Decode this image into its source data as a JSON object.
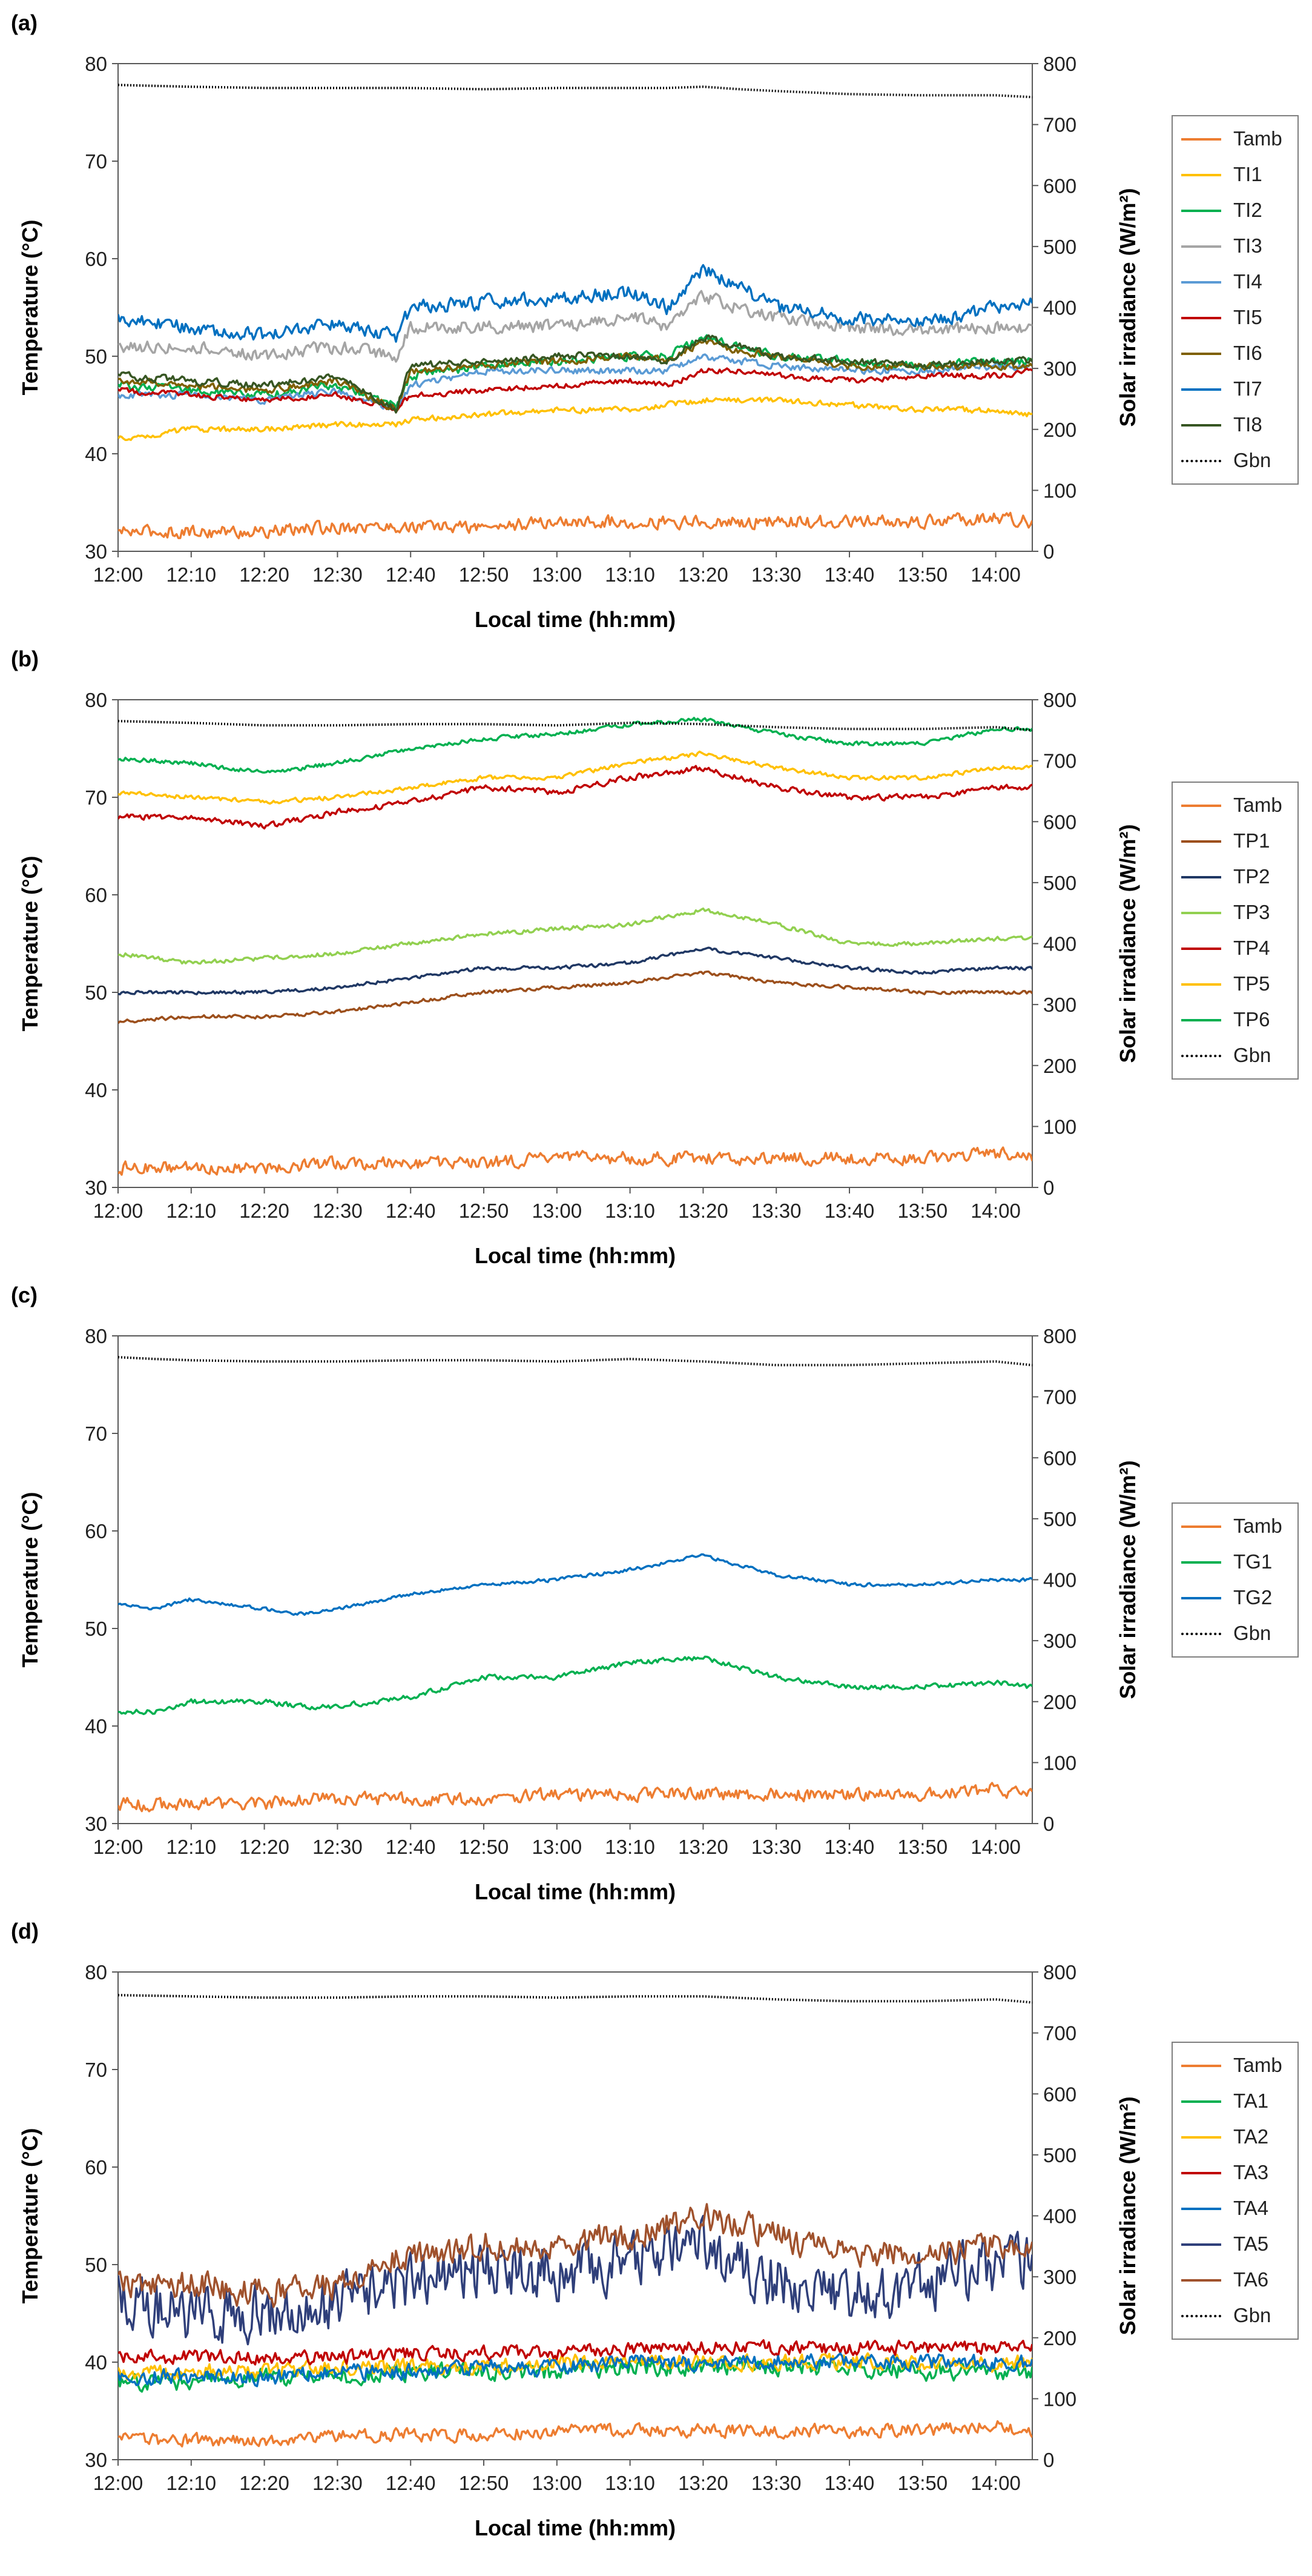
{
  "chart_data": [
    {
      "type": "line",
      "panel_label": "(a)",
      "xlabel": "Local time (hh:mm)",
      "ylabel": "Temperature (°C)",
      "y2label": "Solar irradiance (W/m²)",
      "x_ticks": [
        "12:00",
        "12:10",
        "12:20",
        "12:30",
        "12:40",
        "12:50",
        "13:00",
        "13:10",
        "13:20",
        "13:30",
        "13:40",
        "13:50",
        "14:00"
      ],
      "x_range_minutes": [
        0,
        125
      ],
      "ylim": [
        30,
        80
      ],
      "y_ticks": [
        30,
        40,
        50,
        60,
        70,
        80
      ],
      "y2lim": [
        0,
        800
      ],
      "y2_ticks": [
        0,
        100,
        200,
        300,
        400,
        500,
        600,
        700,
        800
      ],
      "legend_position": "right",
      "grid": false,
      "x_minutes": [
        0,
        10,
        20,
        30,
        38,
        40,
        50,
        60,
        70,
        75,
        80,
        85,
        90,
        100,
        110,
        120,
        125
      ],
      "series": [
        {
          "name": "Tamb",
          "color": "#ed7d31",
          "noise": 0.9,
          "axis": "left",
          "values": [
            32,
            32,
            32,
            32.5,
            32.5,
            32.5,
            32.5,
            33,
            33,
            33,
            33,
            33,
            33,
            33,
            33,
            33.5,
            33
          ]
        },
        {
          "name": "TI1",
          "color": "#ffc000",
          "noise": 0.4,
          "axis": "left",
          "values": [
            41.5,
            42.5,
            42.5,
            43,
            43,
            43.5,
            44,
            44.5,
            44.5,
            45,
            45.5,
            45.5,
            45.5,
            45,
            44.5,
            44.5,
            44
          ]
        },
        {
          "name": "TI2",
          "color": "#00b050",
          "noise": 0.6,
          "axis": "left",
          "values": [
            47,
            46.5,
            46,
            47,
            45,
            48,
            49,
            49.5,
            50,
            50,
            52,
            51,
            50,
            49.5,
            49,
            49.5,
            49.5
          ]
        },
        {
          "name": "TI3",
          "color": "#a5a5a5",
          "noise": 0.9,
          "axis": "left",
          "values": [
            51,
            51,
            50,
            51,
            50,
            53,
            53,
            53,
            54,
            53,
            56,
            55,
            54,
            53,
            52.5,
            53,
            53
          ]
        },
        {
          "name": "TI4",
          "color": "#5b9bd5",
          "noise": 0.5,
          "axis": "left",
          "values": [
            46,
            46,
            45.5,
            46.5,
            44.5,
            47,
            48.5,
            48.5,
            48.5,
            48.5,
            50,
            49.5,
            49,
            48.5,
            48.5,
            49,
            49
          ]
        },
        {
          "name": "TI5",
          "color": "#c00000",
          "noise": 0.4,
          "axis": "left",
          "values": [
            46.5,
            46,
            45.5,
            46,
            44.5,
            46,
            46.5,
            47,
            47.5,
            47,
            48.5,
            48.5,
            48,
            47.5,
            48,
            48,
            48.5
          ]
        },
        {
          "name": "TI6",
          "color": "#7f6000",
          "noise": 0.5,
          "axis": "left",
          "values": [
            47.5,
            47,
            46.5,
            47.5,
            44.5,
            48.5,
            49,
            49.5,
            50,
            49.5,
            51.5,
            50.5,
            50,
            49,
            49,
            49,
            49
          ]
        },
        {
          "name": "TI7",
          "color": "#0070c0",
          "noise": 1.0,
          "axis": "left",
          "values": [
            54,
            53,
            52,
            53.5,
            52,
            55,
            55.5,
            56,
            56.5,
            55,
            59,
            57,
            55,
            54,
            53.5,
            55,
            55.5
          ]
        },
        {
          "name": "TI8",
          "color": "#375623",
          "noise": 0.5,
          "axis": "left",
          "values": [
            48,
            47.5,
            47,
            48,
            44.5,
            49,
            49.5,
            50,
            50,
            49.5,
            52,
            51,
            50,
            49.5,
            49,
            49.5,
            49.5
          ]
        },
        {
          "name": "Gbn",
          "color": "#000000",
          "dotted": true,
          "axis": "right",
          "values": [
            765,
            762,
            760,
            760,
            760,
            760,
            758,
            760,
            760,
            760,
            762,
            758,
            755,
            750,
            748,
            748,
            745
          ]
        }
      ]
    },
    {
      "type": "line",
      "panel_label": "(b)",
      "xlabel": "Local time (hh:mm)",
      "ylabel": "Temperature (°C)",
      "y2label": "Solar irradiance (W/m²)",
      "x_ticks": [
        "12:00",
        "12:10",
        "12:20",
        "12:30",
        "12:40",
        "12:50",
        "13:00",
        "13:10",
        "13:20",
        "13:30",
        "13:40",
        "13:50",
        "14:00"
      ],
      "x_range_minutes": [
        0,
        125
      ],
      "ylim": [
        30,
        80
      ],
      "y_ticks": [
        30,
        40,
        50,
        60,
        70,
        80
      ],
      "y2lim": [
        0,
        800
      ],
      "y2_ticks": [
        0,
        100,
        200,
        300,
        400,
        500,
        600,
        700,
        800
      ],
      "legend_position": "right",
      "grid": false,
      "x_minutes": [
        0,
        10,
        20,
        30,
        40,
        50,
        60,
        70,
        80,
        90,
        100,
        110,
        120,
        125
      ],
      "series": [
        {
          "name": "Tamb",
          "color": "#ed7d31",
          "noise": 0.9,
          "axis": "left",
          "values": [
            32,
            32,
            32,
            32.5,
            32.5,
            32.5,
            33,
            33,
            33,
            33,
            33,
            33,
            33.5,
            33
          ]
        },
        {
          "name": "TP1",
          "color": "#9c4f1c",
          "noise": 0.25,
          "axis": "left",
          "values": [
            47,
            47.5,
            47.5,
            48,
            49,
            50,
            50.5,
            51,
            52,
            51,
            50.5,
            50,
            50,
            50
          ]
        },
        {
          "name": "TP2",
          "color": "#203864",
          "noise": 0.25,
          "axis": "left",
          "values": [
            50,
            50,
            50,
            50.5,
            51.5,
            52.5,
            52.5,
            53,
            54.5,
            53.5,
            52.5,
            52,
            52.5,
            52.5
          ]
        },
        {
          "name": "TP3",
          "color": "#92d050",
          "noise": 0.3,
          "axis": "left",
          "values": [
            54,
            53,
            53.5,
            54,
            55,
            56,
            56.5,
            57,
            58.5,
            57,
            55,
            55,
            55.5,
            55.5
          ]
        },
        {
          "name": "TP4",
          "color": "#c00000",
          "noise": 0.4,
          "axis": "left",
          "values": [
            68,
            68,
            67,
            68.5,
            69.5,
            71,
            70.5,
            72,
            73,
            71,
            70,
            70,
            71,
            71
          ]
        },
        {
          "name": "TP5",
          "color": "#ffc000",
          "noise": 0.3,
          "axis": "left",
          "values": [
            70.5,
            70,
            69.5,
            70,
            71,
            72,
            72,
            73.5,
            74.5,
            73,
            72,
            72,
            73,
            73
          ]
        },
        {
          "name": "TP6",
          "color": "#00b050",
          "noise": 0.3,
          "axis": "left",
          "values": [
            74,
            73.5,
            72.5,
            73.5,
            75,
            76,
            76.5,
            77.5,
            78,
            76.5,
            75.5,
            75.5,
            77,
            77
          ]
        },
        {
          "name": "Gbn",
          "color": "#000000",
          "dotted": true,
          "axis": "right",
          "values": [
            765,
            762,
            758,
            758,
            760,
            760,
            758,
            762,
            760,
            755,
            752,
            752,
            755,
            750
          ]
        }
      ]
    },
    {
      "type": "line",
      "panel_label": "(c)",
      "xlabel": "Local time (hh:mm)",
      "ylabel": "Temperature (°C)",
      "y2label": "Solar irradiance (W/m²)",
      "x_ticks": [
        "12:00",
        "12:10",
        "12:20",
        "12:30",
        "12:40",
        "12:50",
        "13:00",
        "13:10",
        "13:20",
        "13:30",
        "13:40",
        "13:50",
        "14:00"
      ],
      "x_range_minutes": [
        0,
        125
      ],
      "ylim": [
        30,
        80
      ],
      "y_ticks": [
        30,
        40,
        50,
        60,
        70,
        80
      ],
      "y2lim": [
        0,
        800
      ],
      "y2_ticks": [
        0,
        100,
        200,
        300,
        400,
        500,
        600,
        700,
        800
      ],
      "legend_position": "right",
      "grid": false,
      "x_minutes": [
        0,
        5,
        10,
        20,
        25,
        30,
        40,
        50,
        60,
        70,
        80,
        90,
        100,
        110,
        120,
        125
      ],
      "series": [
        {
          "name": "Tamb",
          "color": "#ed7d31",
          "noise": 0.9,
          "axis": "left",
          "values": [
            32,
            32,
            32,
            32,
            32.5,
            32.5,
            32.5,
            32.5,
            33,
            33,
            33,
            33,
            33,
            33,
            33.5,
            33
          ]
        },
        {
          "name": "TG1",
          "color": "#00b050",
          "noise": 0.35,
          "axis": "left",
          "values": [
            41.5,
            41.5,
            42.5,
            42.5,
            42,
            42,
            43,
            45,
            45,
            46.5,
            47,
            45,
            44,
            44,
            44.5,
            44
          ]
        },
        {
          "name": "TG2",
          "color": "#0070c0",
          "noise": 0.25,
          "axis": "left",
          "values": [
            52.5,
            52,
            53,
            52,
            51.5,
            52,
            53.5,
            54.5,
            55,
            56,
            57.5,
            55.5,
            54.5,
            54.5,
            55,
            55
          ]
        },
        {
          "name": "Gbn",
          "color": "#000000",
          "dotted": true,
          "axis": "right",
          "values": [
            765,
            762,
            760,
            758,
            758,
            758,
            760,
            760,
            758,
            762,
            758,
            752,
            752,
            755,
            758,
            752
          ]
        }
      ]
    },
    {
      "type": "line",
      "panel_label": "(d)",
      "xlabel": "Local time (hh:mm)",
      "ylabel": "Temperature (°C)",
      "y2label": "Solar irradiance (W/m²)",
      "x_ticks": [
        "12:00",
        "12:10",
        "12:20",
        "12:30",
        "12:40",
        "12:50",
        "13:00",
        "13:10",
        "13:20",
        "13:30",
        "13:40",
        "13:50",
        "14:00"
      ],
      "x_range_minutes": [
        0,
        125
      ],
      "ylim": [
        30,
        80
      ],
      "y_ticks": [
        30,
        40,
        50,
        60,
        70,
        80
      ],
      "y2lim": [
        0,
        800
      ],
      "y2_ticks": [
        0,
        100,
        200,
        300,
        400,
        500,
        600,
        700,
        800
      ],
      "legend_position": "right",
      "grid": false,
      "x_minutes": [
        0,
        10,
        20,
        30,
        40,
        50,
        60,
        70,
        80,
        90,
        100,
        110,
        120,
        125
      ],
      "series": [
        {
          "name": "Tamb",
          "color": "#ed7d31",
          "noise": 0.9,
          "axis": "left",
          "values": [
            32,
            32,
            32,
            32.5,
            32.5,
            32.5,
            33,
            33,
            33,
            33,
            33,
            33,
            33.5,
            33
          ]
        },
        {
          "name": "TA1",
          "color": "#00b050",
          "noise": 1.2,
          "axis": "left",
          "values": [
            38,
            38,
            38.5,
            38.5,
            39,
            39,
            39,
            39.5,
            39.5,
            39.5,
            39.5,
            39,
            39,
            39
          ]
        },
        {
          "name": "TA2",
          "color": "#ffc000",
          "noise": 1.1,
          "axis": "left",
          "values": [
            39,
            39,
            39,
            39.5,
            39.5,
            39.5,
            40,
            40,
            40,
            40,
            40,
            40,
            40,
            40
          ]
        },
        {
          "name": "TA3",
          "color": "#c00000",
          "noise": 1.0,
          "axis": "left",
          "values": [
            40.5,
            40.5,
            40.5,
            40.5,
            41,
            41,
            41,
            41.5,
            41.5,
            41.5,
            41.5,
            41.5,
            41.5,
            41.5
          ]
        },
        {
          "name": "TA4",
          "color": "#0070c0",
          "noise": 1.1,
          "axis": "left",
          "values": [
            38.5,
            38.5,
            38.5,
            39,
            39,
            39.5,
            39.5,
            40,
            40,
            40,
            40,
            40,
            40,
            40
          ]
        },
        {
          "name": "TA5",
          "color": "#2f3f7a",
          "noise": 4.0,
          "axis": "left",
          "values": [
            47,
            45,
            45,
            46,
            48,
            50,
            49,
            50,
            52,
            48,
            47,
            48,
            50,
            50
          ]
        },
        {
          "name": "TA6",
          "color": "#a0522d",
          "noise": 2.0,
          "axis": "left",
          "values": [
            48,
            48,
            47,
            48,
            51,
            52,
            52,
            53,
            55,
            53,
            51,
            51,
            52,
            52
          ]
        },
        {
          "name": "Gbn",
          "color": "#000000",
          "dotted": true,
          "axis": "right",
          "values": [
            762,
            760,
            758,
            758,
            760,
            760,
            758,
            760,
            760,
            755,
            752,
            752,
            755,
            750
          ]
        }
      ]
    }
  ]
}
